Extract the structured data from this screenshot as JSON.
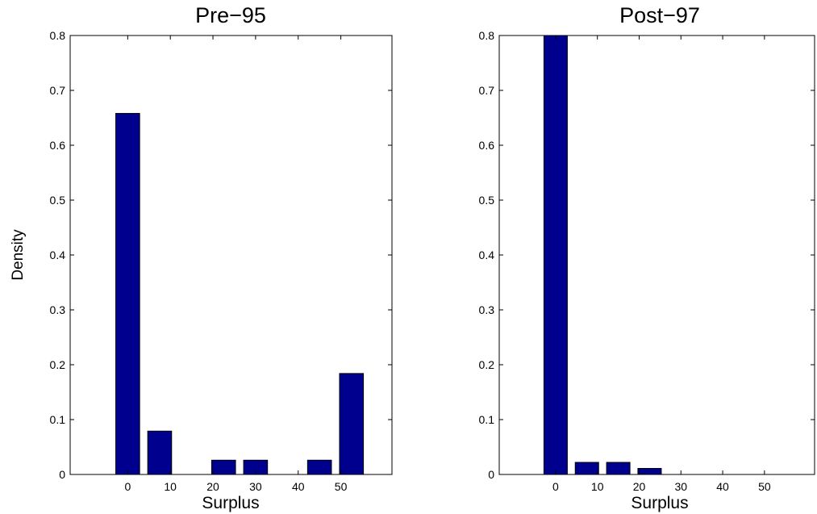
{
  "chart_data": [
    {
      "type": "bar",
      "title": "Pre−95",
      "xlabel": "Surplus",
      "ylabel": "Density",
      "x": [
        0,
        7.5,
        15,
        22.5,
        30,
        37.5,
        45,
        52.5
      ],
      "values": [
        0.658,
        0.079,
        0.0,
        0.026,
        0.026,
        0.0,
        0.026,
        0.184
      ],
      "bar_width": 5.6,
      "xlim": [
        -13.5,
        62
      ],
      "ylim": [
        0,
        0.8
      ],
      "xticks": [
        0,
        10,
        20,
        30,
        40,
        50
      ],
      "xtick_labels": [
        "0",
        "10",
        "20",
        "30",
        "40",
        "50"
      ],
      "yticks": [
        0,
        0.1,
        0.2,
        0.3,
        0.4,
        0.5,
        0.6,
        0.7,
        0.8
      ],
      "ytick_labels": [
        "0",
        "0.1",
        "0.2",
        "0.3",
        "0.4",
        "0.5",
        "0.6",
        "0.7",
        "0.8"
      ],
      "grid": false
    },
    {
      "type": "bar",
      "title": "Post−97",
      "xlabel": "Surplus",
      "ylabel": "",
      "x": [
        0,
        7.5,
        15,
        22.5,
        30,
        37.5,
        45,
        52.5
      ],
      "values": [
        0.8,
        0.022,
        0.022,
        0.011,
        0.0,
        0.0,
        0.0,
        0.0
      ],
      "bar_width": 5.6,
      "xlim": [
        -13.5,
        62
      ],
      "ylim": [
        0,
        0.8
      ],
      "xticks": [
        0,
        10,
        20,
        30,
        40,
        50
      ],
      "xtick_labels": [
        "0",
        "10",
        "20",
        "30",
        "40",
        "50"
      ],
      "yticks": [
        0,
        0.1,
        0.2,
        0.3,
        0.4,
        0.5,
        0.6,
        0.7,
        0.8
      ],
      "ytick_labels": [
        "0",
        "0.1",
        "0.2",
        "0.3",
        "0.4",
        "0.5",
        "0.6",
        "0.7",
        "0.8"
      ],
      "grid": false
    }
  ],
  "colors": {
    "bar_fill": "#00008f",
    "bar_edge": "#000000",
    "axis": "#000000",
    "background": "#ffffff"
  }
}
